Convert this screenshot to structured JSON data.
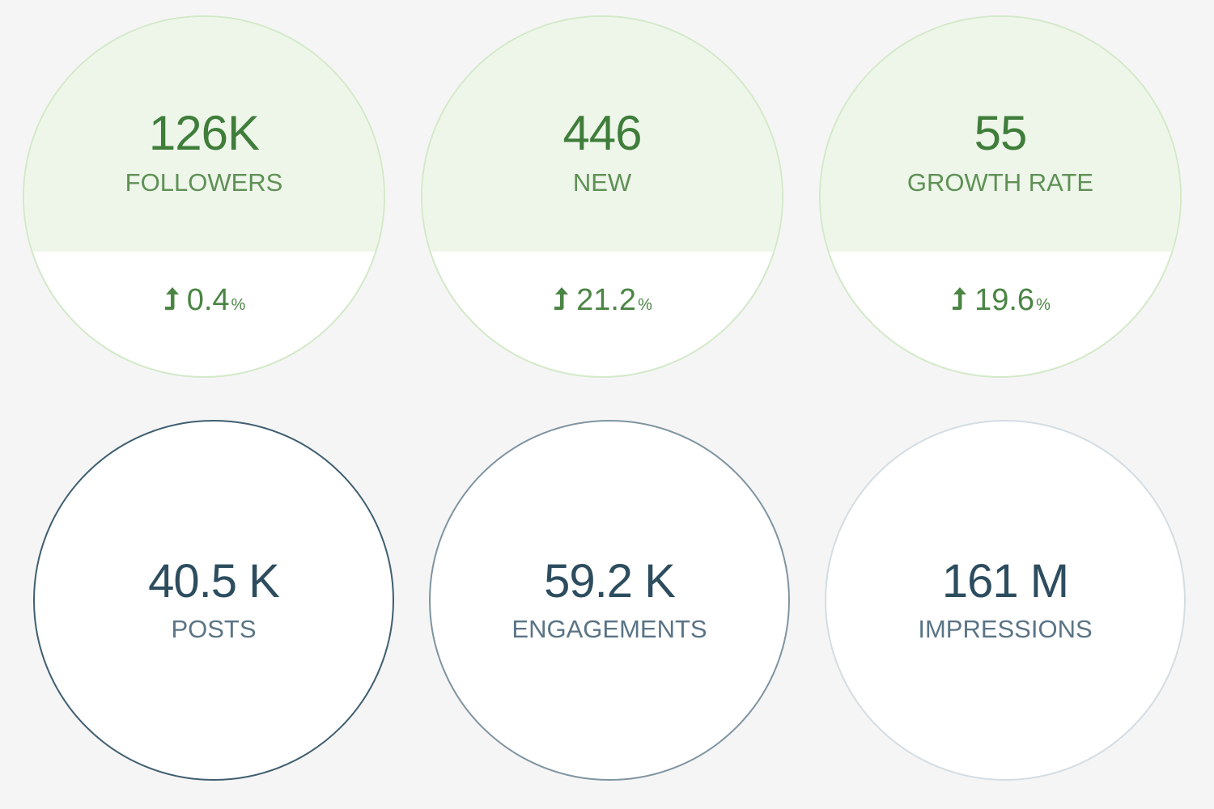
{
  "top_stats": [
    {
      "value": "126K",
      "label": "FOLLOWERS",
      "change": "0.4",
      "unit": "%",
      "trend": "up"
    },
    {
      "value": "446",
      "label": "NEW",
      "change": "21.2",
      "unit": "%",
      "trend": "up"
    },
    {
      "value": "55",
      "label": "GROWTH RATE",
      "change": "19.6",
      "unit": "%",
      "trend": "up"
    }
  ],
  "bottom_stats": [
    {
      "value": "40.5 K",
      "label": "POSTS"
    },
    {
      "value": "59.2 K",
      "label": "ENGAGEMENTS"
    },
    {
      "value": "161 M",
      "label": "IMPRESSIONS"
    }
  ],
  "icons": {
    "trend": "arrow-up-icon"
  },
  "colors": {
    "background": "#f5f5f5",
    "green_fill": "#eef6ea",
    "green_border": "#d3e9c8",
    "green_text": "#3f7d3a",
    "slate_text": "#2d4d5f",
    "slate_border_dark": "#3f5e70",
    "slate_border_mid": "#7f94a1",
    "slate_border_light": "#d3dde3"
  }
}
